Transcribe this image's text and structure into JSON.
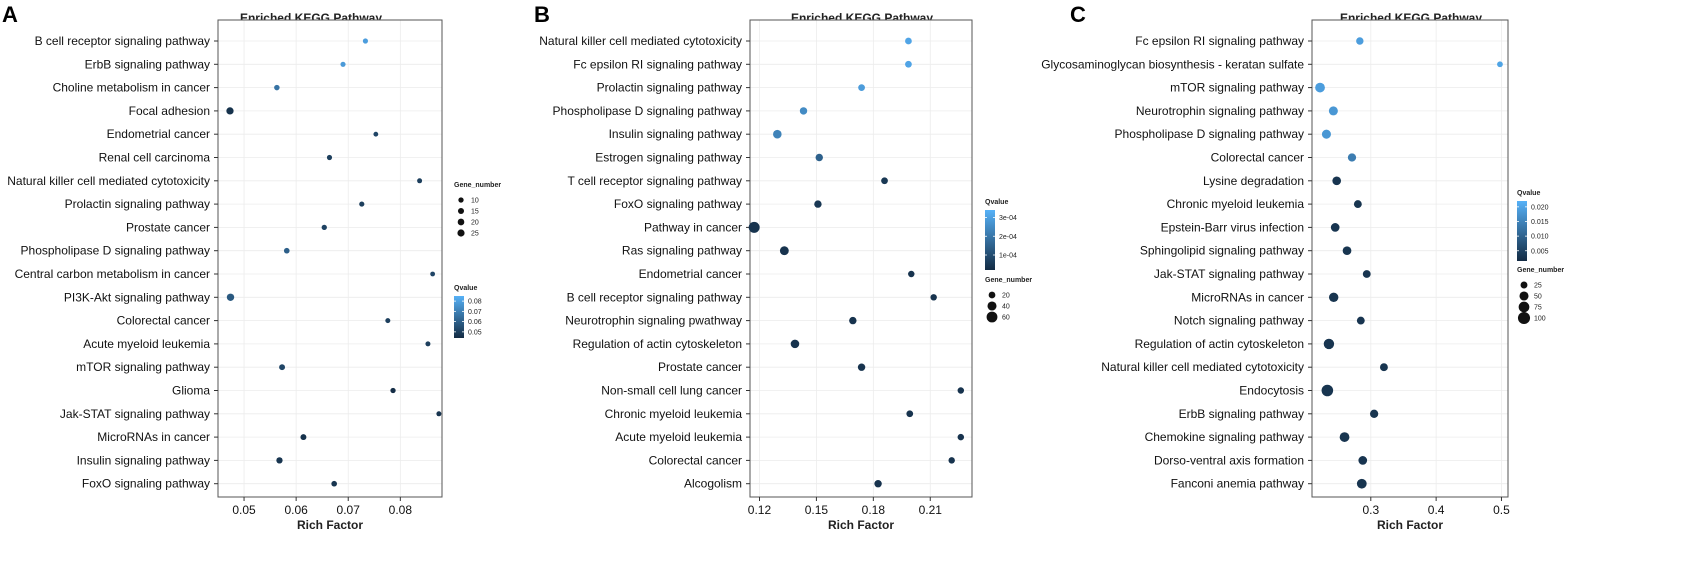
{
  "chart_data": [
    {
      "type": "scatter",
      "panel_label": "A",
      "title": "Enriched KEGG Pathway",
      "xlabel": "Rich Factor",
      "xlim": [
        0.045,
        0.088
      ],
      "xticks": [
        0.05,
        0.06,
        0.07,
        0.08
      ],
      "xtick_labels": [
        "0.05",
        "0.06",
        "0.07",
        "0.08"
      ],
      "categories": [
        "B cell receptor signaling pathway",
        "ErbB signaling pathway",
        "Choline metabolism in cancer",
        "Focal adhesion",
        "Endometrial cancer",
        "Renal cell carcinoma",
        "Natural killer cell mediated cytotoxicity",
        "Prolactin signaling pathway",
        "Prostate cancer",
        "Phospholipase D signaling pathway",
        "Central carbon metabolism in cancer",
        "PI3K-Akt signaling pathway",
        "Colorectal cancer",
        "Acute myeloid leukemia",
        "mTOR signaling pathway",
        "Glioma",
        "Jak-STAT signaling pathway",
        "MicroRNAs in cancer",
        "Insulin signaling pathway",
        "FoxO signaling pathway"
      ],
      "rich_factor": [
        0.0733,
        0.069,
        0.0563,
        0.0473,
        0.0753,
        0.0664,
        0.0837,
        0.0726,
        0.0654,
        0.0582,
        0.0862,
        0.0474,
        0.0776,
        0.0853,
        0.0573,
        0.0786,
        0.0874,
        0.0614,
        0.0568,
        0.0673
      ],
      "gene_number": [
        9,
        9,
        11,
        26,
        7,
        9,
        8,
        9,
        10,
        12,
        7,
        27,
        8,
        8,
        14,
        10,
        8,
        14,
        17,
        12
      ],
      "qvalue": [
        0.079,
        0.078,
        0.066,
        0.046,
        0.052,
        0.05,
        0.05,
        0.05,
        0.051,
        0.06,
        0.052,
        0.058,
        0.05,
        0.05,
        0.052,
        0.045,
        0.047,
        0.046,
        0.047,
        0.047
      ],
      "size_legend": {
        "title": "Gene_number",
        "values": [
          10,
          15,
          20,
          25
        ],
        "labels": [
          "10",
          "15",
          "20",
          "25"
        ]
      },
      "color_legend": {
        "title": "Qvalue",
        "ticks": [
          0.05,
          0.06,
          0.07,
          0.08
        ],
        "labels": [
          "0.05",
          "0.06",
          "0.07",
          "0.08"
        ],
        "range": [
          0.044,
          0.085
        ]
      },
      "legend_order": [
        "size",
        "color"
      ]
    },
    {
      "type": "scatter",
      "panel_label": "B",
      "title": "Enriched KEGG Pathway",
      "xlabel": "Rich Factor",
      "xlim": [
        0.115,
        0.232
      ],
      "xticks": [
        0.12,
        0.15,
        0.18,
        0.21
      ],
      "xtick_labels": [
        "0.12",
        "0.15",
        "0.18",
        "0.21"
      ],
      "categories": [
        "Natural killer cell mediated cytotoxicity",
        "Fc epsilon RI signaling pathway",
        "Prolactin signaling pathway",
        "Phospholipase D signaling pathway",
        "Insulin signaling pathway",
        "Estrogen signaling pathway",
        "T cell receptor signaling pathway",
        "FoxO signaling pathway",
        "Pathway in cancer",
        "Ras signaling pathway",
        "Endometrial cancer",
        "B cell receptor signaling pathway",
        "Neurotrophin signaling pwathway",
        "Regulation of actin cytoskeleton",
        "Prostate cancer",
        "Non-small cell lung cancer",
        "Chronic myeloid leukemia",
        "Acute myeloid leukemia",
        "Colorectal cancer",
        "Alcogolism"
      ],
      "rich_factor": [
        0.1985,
        0.1985,
        0.1738,
        0.1432,
        0.1294,
        0.1515,
        0.1859,
        0.1508,
        0.1172,
        0.1331,
        0.2,
        0.2118,
        0.1692,
        0.1387,
        0.1738,
        0.2261,
        0.1992,
        0.2261,
        0.2213,
        0.1825
      ],
      "gene_number": [
        20,
        20,
        20,
        25,
        35,
        25,
        20,
        25,
        62,
        38,
        18,
        18,
        25,
        35,
        25,
        18,
        20,
        18,
        18,
        25
      ],
      "qvalue": [
        0.00031,
        0.00031,
        0.00029,
        0.00025,
        0.00023,
        0.00015,
        5e-05,
        5e-05,
        4e-05,
        4e-05,
        4e-05,
        4e-05,
        4e-05,
        4e-05,
        4e-05,
        4e-05,
        4e-05,
        4e-05,
        4e-05,
        4e-05
      ],
      "size_legend": {
        "title": "Gene_number",
        "values": [
          20,
          40,
          60
        ],
        "labels": [
          "20",
          "40",
          "60"
        ]
      },
      "color_legend": {
        "title": "Qvalue",
        "ticks": [
          0.0001,
          0.0002,
          0.0003
        ],
        "labels": [
          "1e-04",
          "2e-04",
          "3e-04"
        ],
        "range": [
          2e-05,
          0.00034
        ]
      },
      "legend_order": [
        "color",
        "size"
      ]
    },
    {
      "type": "scatter",
      "panel_label": "C",
      "title": "Enriched KEGG Pathway",
      "xlabel": "Rich Factor",
      "xlim": [
        0.21,
        0.51
      ],
      "xticks": [
        0.3,
        0.4,
        0.5
      ],
      "xtick_labels": [
        "0.3",
        "0.4",
        "0.5"
      ],
      "categories": [
        "Fc epsilon RI signaling pathway",
        "Glycosaminoglycan biosynthesis - keratan sulfate",
        "mTOR signaling pathway",
        "Neurotrophin signaling pathway",
        "Phospholipase D signaling pathway",
        "Colorectal cancer",
        "Lysine degradation",
        "Chronic myeloid leukemia",
        "Epstein-Barr virus infection",
        "Sphingolipid signaling pathway",
        "Jak-STAT signaling pathway",
        "MicroRNAs in cancer",
        "Notch signaling pathway",
        "Regulation of actin cytoskeleton",
        "Natural killer cell mediated cytotoxicity",
        "Endocytosis",
        "ErbB signaling pathway",
        "Chemokine signaling pathway",
        "Dorso-ventral axis formation",
        "Fanconi anemia pathway"
      ],
      "rich_factor": [
        0.2832,
        0.4977,
        0.2223,
        0.2427,
        0.2321,
        0.2712,
        0.2478,
        0.2802,
        0.2455,
        0.2636,
        0.2938,
        0.2432,
        0.2847,
        0.2359,
        0.3201,
        0.2335,
        0.3051,
        0.2598,
        0.2877,
        0.2862
      ],
      "gene_number": [
        30,
        15,
        60,
        50,
        50,
        40,
        45,
        35,
        45,
        45,
        35,
        55,
        35,
        70,
        35,
        90,
        40,
        60,
        45,
        60
      ],
      "qvalue": [
        0.019,
        0.02,
        0.019,
        0.018,
        0.018,
        0.014,
        0.003,
        0.003,
        0.003,
        0.003,
        0.003,
        0.003,
        0.003,
        0.003,
        0.003,
        0.003,
        0.003,
        0.003,
        0.003,
        0.003
      ],
      "size_legend": {
        "title": "Gene_number",
        "values": [
          25,
          50,
          75,
          100
        ],
        "labels": [
          "25",
          "50",
          "75",
          "100"
        ]
      },
      "color_legend": {
        "title": "Qvalue",
        "ticks": [
          0.005,
          0.01,
          0.015,
          0.02
        ],
        "labels": [
          "0.005",
          "0.010",
          "0.015",
          "0.020"
        ],
        "range": [
          0.0015,
          0.022
        ]
      },
      "legend_order": [
        "color",
        "size"
      ]
    }
  ],
  "colors": {
    "low": "#132b43",
    "high": "#56b1f7"
  }
}
